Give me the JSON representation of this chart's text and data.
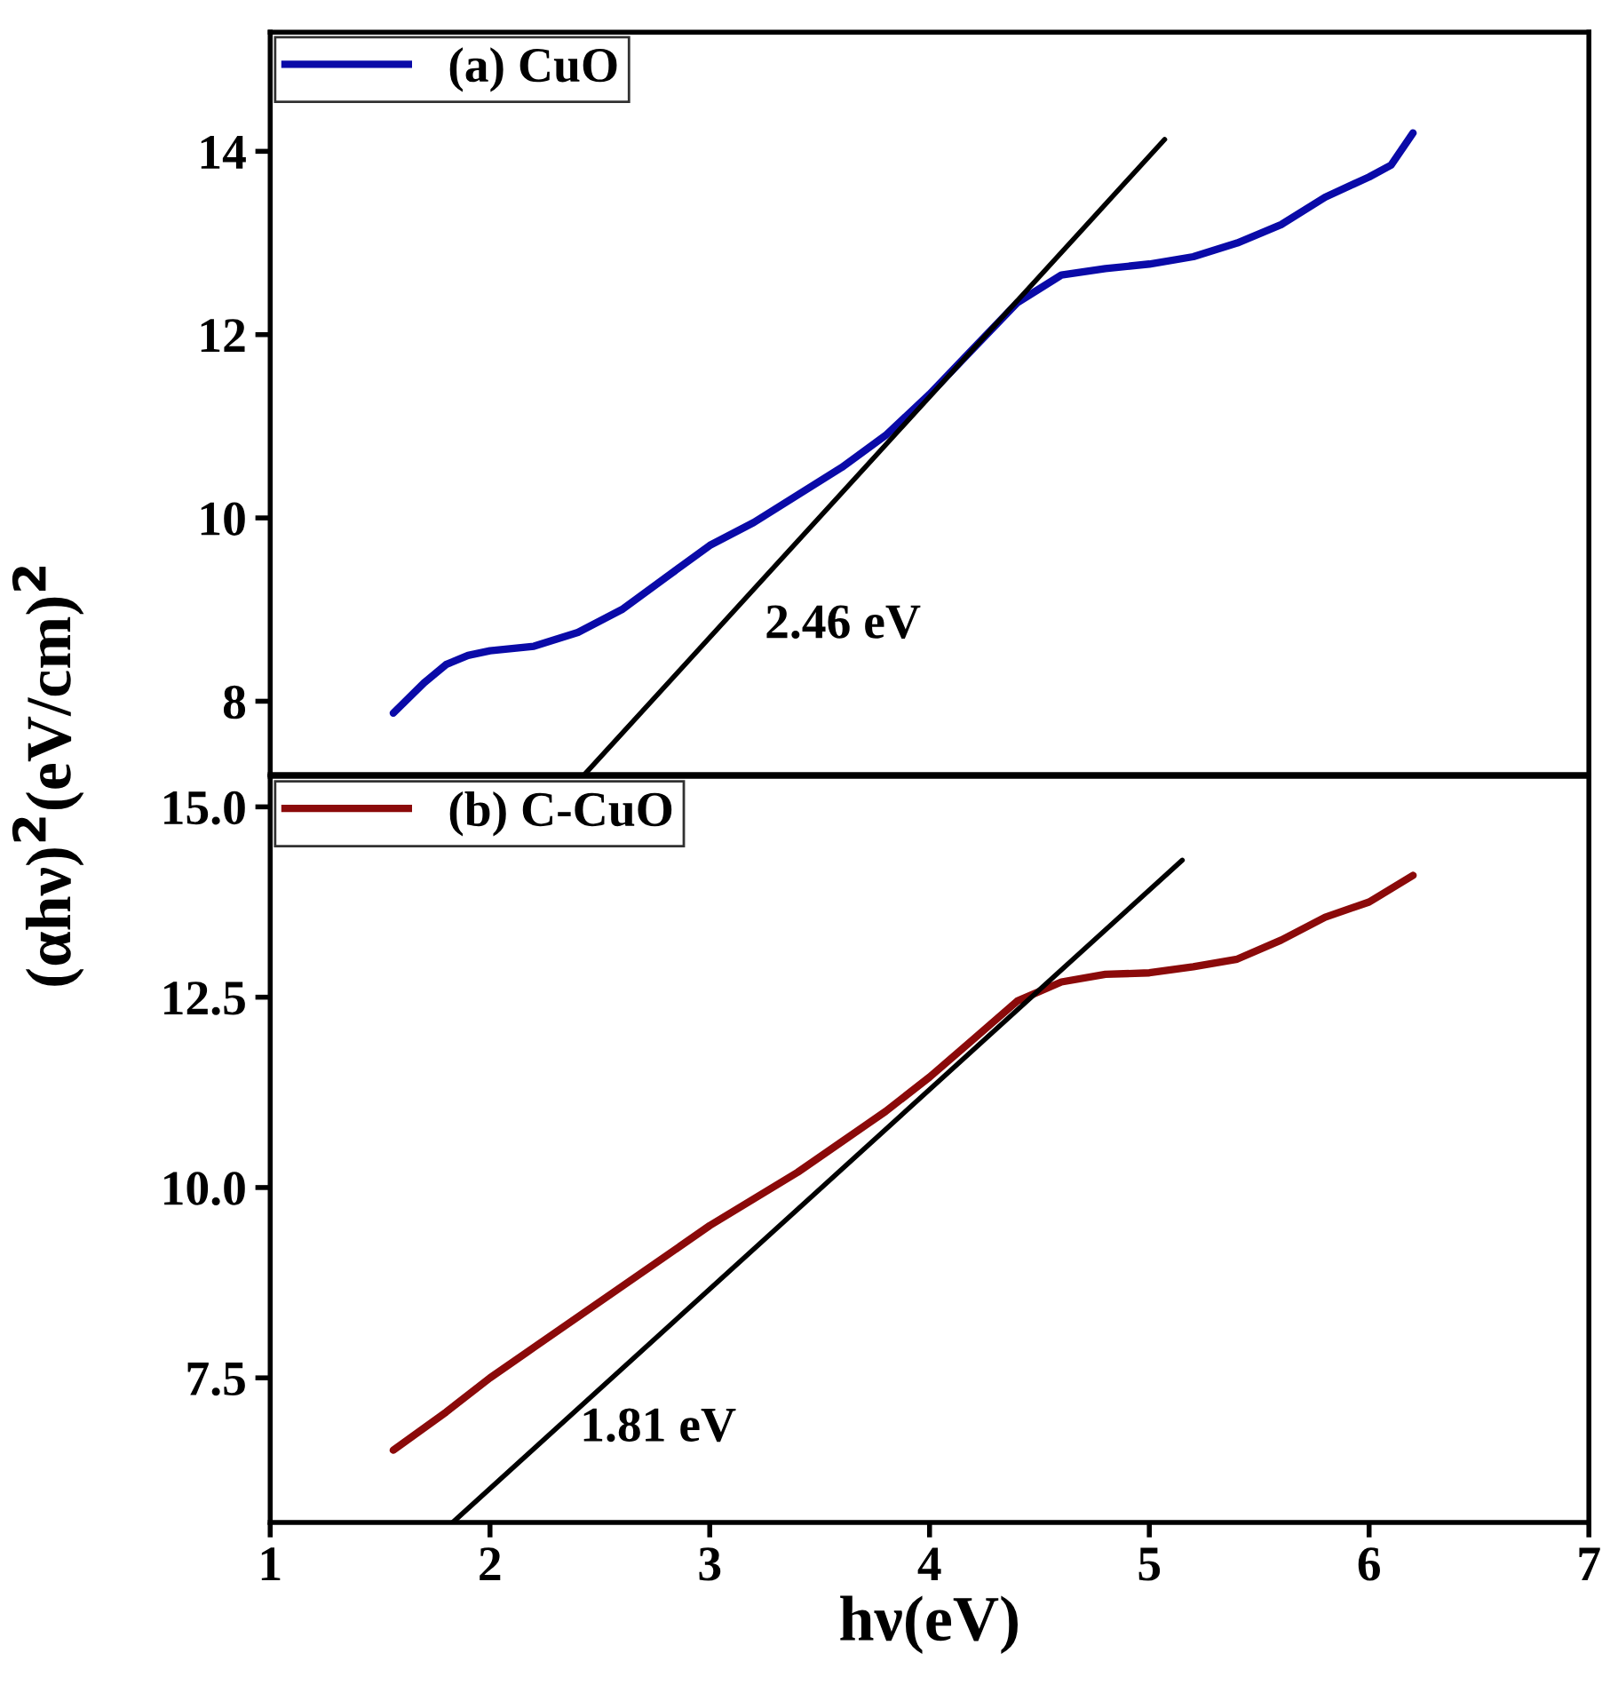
{
  "chart_data": [
    {
      "type": "line",
      "ylabel": "(αhν)$^{2}$(eV/cm)$^{2}$",
      "xlim": [
        1,
        7
      ],
      "ylim": [
        7.2,
        15.3
      ],
      "yticks": [
        8,
        10,
        12,
        14
      ],
      "tick_labels": "y",
      "legend": "top left",
      "grid": false,
      "series": [
        {
          "name": "(a) CuO",
          "color": "#0a0aa8",
          "x": [
            1.56,
            1.7,
            1.8,
            1.9,
            2.0,
            2.2,
            2.4,
            2.6,
            2.8,
            3.0,
            3.2,
            3.4,
            3.6,
            3.8,
            4.0,
            4.2,
            4.4,
            4.6,
            4.8,
            5.0,
            5.2,
            5.4,
            5.6,
            5.8,
            6.0,
            6.1,
            6.2
          ],
          "values": [
            7.87,
            8.2,
            8.4,
            8.5,
            8.55,
            8.6,
            8.75,
            9.0,
            9.35,
            9.7,
            9.95,
            10.25,
            10.55,
            10.9,
            11.35,
            11.85,
            12.35,
            12.65,
            12.72,
            12.77,
            12.85,
            13.0,
            13.2,
            13.5,
            13.72,
            13.85,
            14.2
          ]
        },
        {
          "color": "#000000",
          "x": [
            2.43,
            5.07
          ],
          "values": [
            7.2,
            14.13
          ]
        }
      ],
      "annotations": [
        "2.46 eV"
      ]
    },
    {
      "type": "line",
      "xlabel": "hν(eV)",
      "xlim": [
        1,
        7
      ],
      "xticks": [
        1,
        2,
        3,
        4,
        5,
        6,
        7
      ],
      "ylim": [
        5.6,
        15.4
      ],
      "yticks": [
        {
          "value": 7.5,
          "label": "7.5"
        },
        {
          "value": 10,
          "label": "10.0"
        },
        {
          "value": 12.5,
          "label": "12.5"
        },
        {
          "value": 15,
          "label": "15.0"
        }
      ],
      "legend": "top left",
      "grid": false,
      "series": [
        {
          "name": "(b) C-CuO",
          "color": "#8b0a0a",
          "x": [
            1.56,
            1.8,
            2.0,
            2.2,
            2.4,
            2.6,
            2.8,
            3.0,
            3.2,
            3.4,
            3.6,
            3.8,
            4.0,
            4.2,
            4.4,
            4.6,
            4.8,
            5.0,
            5.2,
            5.4,
            5.6,
            5.8,
            6.0,
            6.2
          ],
          "values": [
            6.55,
            7.05,
            7.5,
            7.9,
            8.3,
            8.7,
            9.1,
            9.5,
            9.85,
            10.2,
            10.6,
            11.0,
            11.45,
            11.95,
            12.45,
            12.7,
            12.8,
            12.82,
            12.9,
            13.0,
            13.25,
            13.55,
            13.75,
            14.1
          ]
        },
        {
          "color": "#000000",
          "x": [
            1.83,
            5.15
          ],
          "values": [
            5.6,
            14.3
          ]
        }
      ],
      "annotations": [
        "1.81 eV"
      ]
    }
  ]
}
